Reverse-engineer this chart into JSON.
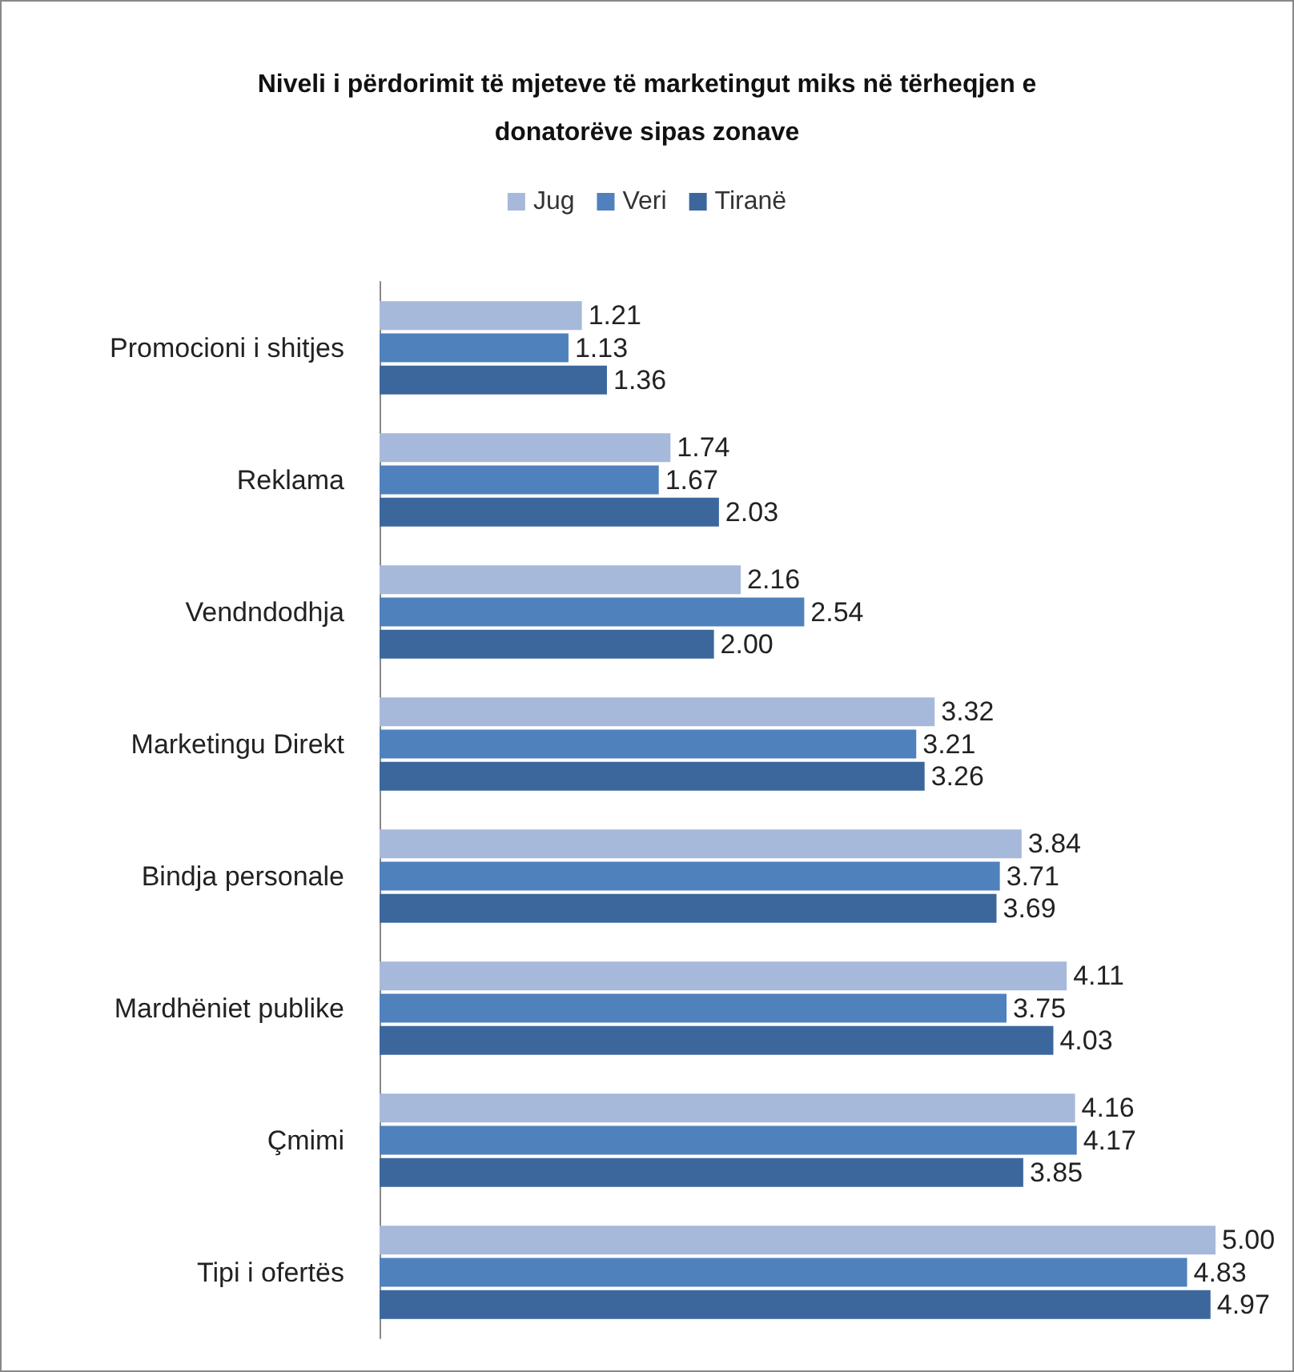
{
  "chart_data": {
    "type": "bar",
    "orientation": "horizontal",
    "title": "Niveli i përdorimit të mjeteve të marketingut miks në tërheqjen e\ndonatorëve sipas zonave",
    "categories": [
      "Promocioni i shitjes",
      "Reklama",
      "Vendndodhja",
      "Marketingu Direkt",
      "Bindja personale",
      "Mardhëniet publike",
      "Çmimi",
      "Tipi i ofertës"
    ],
    "series": [
      {
        "name": "Jug",
        "color": "#a7b9da",
        "values": [
          1.21,
          1.74,
          2.16,
          3.32,
          3.84,
          4.11,
          4.16,
          5.0
        ],
        "value_labels": [
          "1.21",
          "1.74",
          "2.16",
          "3.32",
          "3.84",
          "4.11",
          "4.16",
          "5.00"
        ]
      },
      {
        "name": "Veri",
        "color": "#4f81bd",
        "values": [
          1.13,
          1.67,
          2.54,
          3.21,
          3.71,
          3.75,
          4.17,
          4.83
        ],
        "value_labels": [
          "1.13",
          "1.67",
          "2.54",
          "3.21",
          "3.71",
          "3.75",
          "4.17",
          "4.83"
        ]
      },
      {
        "name": "Tiranë",
        "color": "#3c679c",
        "values": [
          1.36,
          2.03,
          2.0,
          3.26,
          3.69,
          4.03,
          3.85,
          4.97
        ],
        "value_labels": [
          "1.36",
          "2.03",
          "2.00",
          "3.26",
          "3.69",
          "4.03",
          "3.85",
          "4.97"
        ]
      }
    ],
    "legend": "top"
  }
}
